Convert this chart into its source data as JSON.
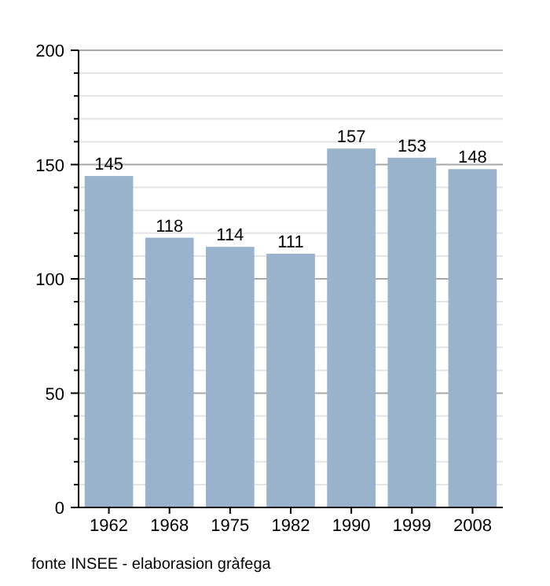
{
  "chart_data": {
    "type": "bar",
    "categories": [
      "1962",
      "1968",
      "1975",
      "1982",
      "1990",
      "1999",
      "2008"
    ],
    "values": [
      145,
      118,
      114,
      111,
      157,
      153,
      148
    ],
    "color": "#9ab3cc",
    "data_labels": true,
    "ylim": [
      0,
      200
    ],
    "yticks": [
      0,
      {
        "value": 10,
        "label": null
      },
      {
        "value": 20,
        "label": null
      },
      {
        "value": 30,
        "label": null
      },
      {
        "value": 40,
        "label": null
      },
      50,
      {
        "value": 60,
        "label": null
      },
      {
        "value": 70,
        "label": null
      },
      {
        "value": 80,
        "label": null
      },
      {
        "value": 90,
        "label": null
      },
      100,
      {
        "value": 110,
        "label": null
      },
      {
        "value": 120,
        "label": null
      },
      {
        "value": 130,
        "label": null
      },
      {
        "value": 140,
        "label": null
      },
      150,
      {
        "value": 160,
        "label": null
      },
      {
        "value": 170,
        "label": null
      },
      {
        "value": 180,
        "label": null
      },
      {
        "value": 190,
        "label": null
      },
      200
    ],
    "grid": "y",
    "annotations": [
      "fonte INSEE - elaborasion gràfega"
    ]
  }
}
